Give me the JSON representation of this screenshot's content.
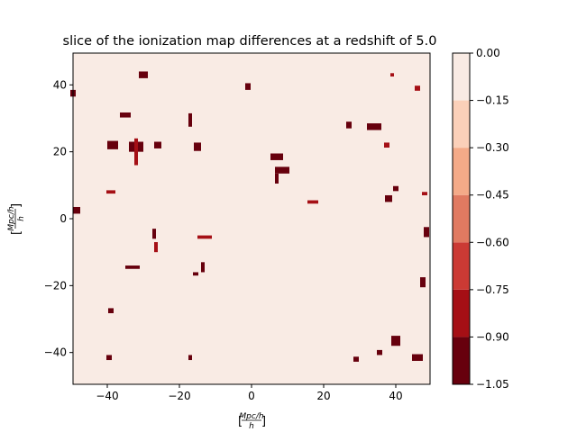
{
  "chart_data": {
    "type": "heatmap",
    "title": "slice of the ionization map differences at a redshift of 5.0",
    "xlabel": "Mpc/h",
    "ylabel": "Mpc/h",
    "xlim": [
      -49.5,
      49.5
    ],
    "ylim": [
      -49.5,
      49.5
    ],
    "xticks": [
      -40,
      -20,
      0,
      20,
      40
    ],
    "yticks": [
      -40,
      -20,
      0,
      20,
      40
    ],
    "grid": false,
    "background_level": 0.0,
    "colorbar": {
      "levels": [
        -1.05,
        -0.9,
        -0.75,
        -0.6,
        -0.45,
        -0.3,
        -0.15,
        0.0
      ],
      "tick_labels": [
        "−1.05",
        "−0.90",
        "−0.75",
        "−0.60",
        "−0.45",
        "−0.30",
        "−0.15",
        "0.00"
      ],
      "colors": [
        "#67000d",
        "#a50f15",
        "#cb3a34",
        "#e07a61",
        "#f4aa88",
        "#fbd0b9",
        "#f9ebe4"
      ]
    },
    "patches": [
      {
        "x": -32,
        "y": 21.5,
        "w": 4,
        "h": 3,
        "level": -1.0
      },
      {
        "x": -38.5,
        "y": 22,
        "w": 3,
        "h": 2.5,
        "level": -1.0
      },
      {
        "x": -35,
        "y": 31,
        "w": 3,
        "h": 1.5,
        "level": -0.9
      },
      {
        "x": -26,
        "y": 22,
        "w": 2,
        "h": 2,
        "level": -1.0
      },
      {
        "x": -30,
        "y": 43,
        "w": 2.5,
        "h": 2,
        "level": -1.0
      },
      {
        "x": -32,
        "y": 20,
        "w": 1,
        "h": 8,
        "level": -0.8
      },
      {
        "x": -15,
        "y": 21.5,
        "w": 2,
        "h": 2.5,
        "level": -1.0
      },
      {
        "x": -17,
        "y": 29.5,
        "w": 1,
        "h": 4,
        "level": -0.9
      },
      {
        "x": -1,
        "y": 39.5,
        "w": 1.5,
        "h": 2,
        "level": -0.9
      },
      {
        "x": 7,
        "y": 18.5,
        "w": 3.5,
        "h": 2,
        "level": -1.0
      },
      {
        "x": 8.5,
        "y": 14.5,
        "w": 4,
        "h": 2,
        "level": -1.0
      },
      {
        "x": 7,
        "y": 12,
        "w": 1,
        "h": 3,
        "level": -0.9
      },
      {
        "x": 17,
        "y": 5,
        "w": 3,
        "h": 1,
        "level": -0.8
      },
      {
        "x": 27,
        "y": 28,
        "w": 1.5,
        "h": 2,
        "level": -0.9
      },
      {
        "x": 34,
        "y": 27.5,
        "w": 4,
        "h": 2,
        "level": -1.0
      },
      {
        "x": 38,
        "y": 6,
        "w": 2,
        "h": 2,
        "level": -0.9
      },
      {
        "x": 40,
        "y": 9,
        "w": 1.5,
        "h": 1.5,
        "level": -0.9
      },
      {
        "x": 37.5,
        "y": 22,
        "w": 1.5,
        "h": 1.5,
        "level": -0.8
      },
      {
        "x": 48.5,
        "y": -4,
        "w": 1.5,
        "h": 3,
        "level": -0.9
      },
      {
        "x": 47.5,
        "y": -19,
        "w": 1.5,
        "h": 3,
        "level": -0.9
      },
      {
        "x": 40,
        "y": -36.5,
        "w": 2.5,
        "h": 3,
        "level": -1.0
      },
      {
        "x": 46,
        "y": -41.5,
        "w": 3,
        "h": 2,
        "level": -1.0
      },
      {
        "x": 35.5,
        "y": -40,
        "w": 1.5,
        "h": 1.5,
        "level": -0.9
      },
      {
        "x": 29,
        "y": -42,
        "w": 1.5,
        "h": 1.5,
        "level": -0.9
      },
      {
        "x": -33,
        "y": -14.5,
        "w": 4,
        "h": 1,
        "level": -0.9
      },
      {
        "x": -27,
        "y": -4.5,
        "w": 1,
        "h": 3,
        "level": -0.9
      },
      {
        "x": -26.5,
        "y": -8.5,
        "w": 1,
        "h": 3,
        "level": -0.8
      },
      {
        "x": -13.5,
        "y": -14.5,
        "w": 1,
        "h": 3,
        "level": -0.9
      },
      {
        "x": -15.5,
        "y": -16.5,
        "w": 1.5,
        "h": 1,
        "level": -0.9
      },
      {
        "x": -13,
        "y": -5.5,
        "w": 4,
        "h": 1,
        "level": -0.8
      },
      {
        "x": -39,
        "y": -27.5,
        "w": 1.5,
        "h": 1.5,
        "level": -0.9
      },
      {
        "x": -39.5,
        "y": -41.5,
        "w": 1.5,
        "h": 1.5,
        "level": -1.0
      },
      {
        "x": -49.5,
        "y": 37.5,
        "w": 1.5,
        "h": 2,
        "level": -0.9
      },
      {
        "x": -48.5,
        "y": 2.5,
        "w": 2,
        "h": 2,
        "level": -0.9
      },
      {
        "x": -39,
        "y": 8,
        "w": 2.5,
        "h": 1,
        "level": -0.8
      },
      {
        "x": -17,
        "y": -41.5,
        "w": 1,
        "h": 1.5,
        "level": -0.9
      },
      {
        "x": 48,
        "y": 7.5,
        "w": 1.5,
        "h": 1,
        "level": -0.8
      },
      {
        "x": 46,
        "y": 39,
        "w": 1.5,
        "h": 1.5,
        "level": -0.8
      },
      {
        "x": 39,
        "y": 43,
        "w": 1,
        "h": 1,
        "level": -0.8
      }
    ]
  }
}
